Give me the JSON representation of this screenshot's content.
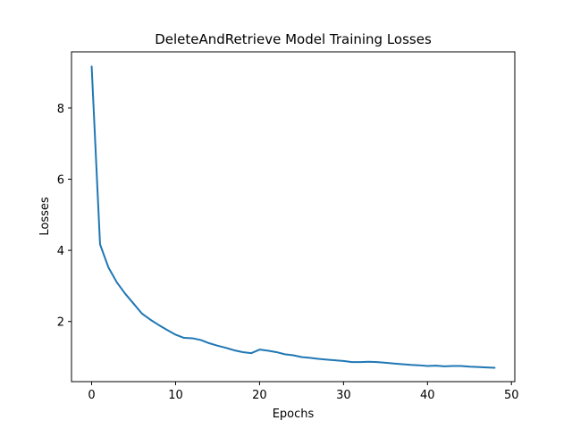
{
  "chart_data": {
    "type": "line",
    "title": "DeleteAndRetrieve Model Training Losses",
    "xlabel": "Epochs",
    "ylabel": "Losses",
    "xlim": [
      -2.4,
      50.4
    ],
    "ylim": [
      0.31,
      9.58
    ],
    "xticks": [
      0,
      10,
      20,
      30,
      40,
      50
    ],
    "yticks": [
      2,
      4,
      6,
      8
    ],
    "grid": false,
    "series": [
      {
        "color": "#1f77b4",
        "x": [
          0,
          1,
          2,
          3,
          4,
          5,
          6,
          7,
          8,
          9,
          10,
          11,
          12,
          13,
          14,
          15,
          16,
          17,
          18,
          19,
          20,
          21,
          22,
          23,
          24,
          25,
          26,
          27,
          28,
          29,
          30,
          31,
          32,
          33,
          34,
          35,
          36,
          37,
          38,
          39,
          40,
          41,
          42,
          43,
          44,
          45,
          46,
          47,
          48
        ],
        "y": [
          9.17,
          4.17,
          3.52,
          3.1,
          2.78,
          2.5,
          2.22,
          2.05,
          1.9,
          1.76,
          1.63,
          1.54,
          1.53,
          1.48,
          1.39,
          1.32,
          1.26,
          1.19,
          1.14,
          1.11,
          1.21,
          1.18,
          1.14,
          1.08,
          1.05,
          1.0,
          0.98,
          0.95,
          0.93,
          0.91,
          0.89,
          0.86,
          0.86,
          0.87,
          0.86,
          0.84,
          0.82,
          0.8,
          0.78,
          0.77,
          0.75,
          0.76,
          0.74,
          0.75,
          0.75,
          0.73,
          0.72,
          0.71,
          0.7
        ]
      }
    ]
  }
}
